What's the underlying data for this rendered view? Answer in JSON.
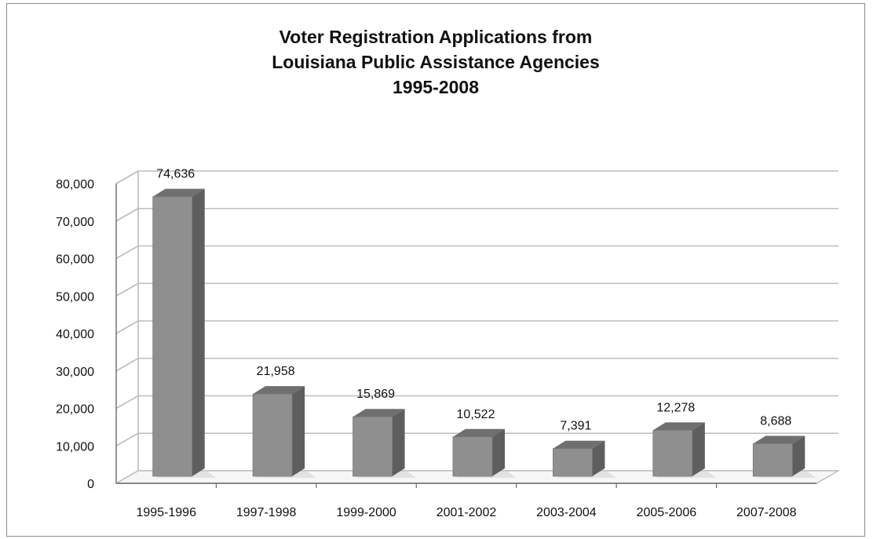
{
  "chart_data": {
    "type": "bar",
    "title_lines": [
      "Voter Registration Applications from",
      "Louisiana Public Assistance Agencies",
      "1995-2008"
    ],
    "categories": [
      "1995-1996",
      "1997-1998",
      "1999-2000",
      "2001-2002",
      "2003-2004",
      "2005-2006",
      "2007-2008"
    ],
    "values": [
      74636,
      21958,
      15869,
      10522,
      7391,
      12278,
      8688
    ],
    "data_labels": [
      "74,636",
      "21,958",
      "15,869",
      "10,522",
      "7,391",
      "12,278",
      "8,688"
    ],
    "y_ticks": [
      0,
      10000,
      20000,
      30000,
      40000,
      50000,
      60000,
      70000,
      80000
    ],
    "y_tick_labels": [
      "0",
      "10,000",
      "20,000",
      "30,000",
      "40,000",
      "50,000",
      "60,000",
      "70,000",
      "80,000"
    ],
    "ylim": [
      0,
      80000
    ],
    "grid": true,
    "legend": "none",
    "style": "3d-column",
    "colors": {
      "bar_front": "#8f8f8f",
      "bar_side": "#5e5e5e",
      "bar_top": "#6f6f6f",
      "grid": "#bdbdbd",
      "axis": "#6a6a6a"
    }
  }
}
